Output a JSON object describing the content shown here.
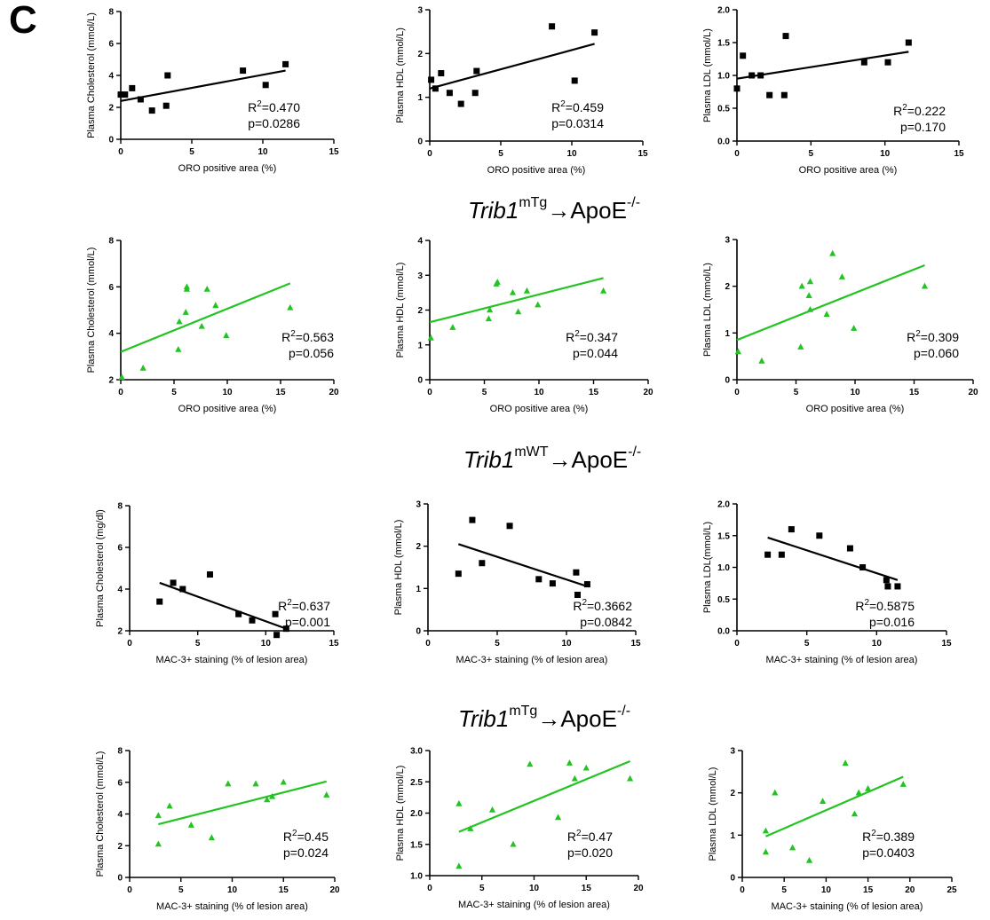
{
  "panel_label": "C",
  "sections": [
    {
      "gene": "Trib1",
      "sup": "mTg",
      "arrow": "→",
      "host": "ApoE",
      "host_sup": "-/-"
    },
    {
      "gene": "Trib1",
      "sup": "mWT",
      "arrow": "→",
      "host": "ApoE",
      "host_sup": "-/-"
    },
    {
      "gene": "Trib1",
      "sup": "mTg",
      "arrow": "→",
      "host": "ApoE",
      "host_sup": "-/-"
    }
  ],
  "colors": {
    "black_series": "#000000",
    "green_series": "#22c322"
  },
  "chart_data": [
    {
      "type": "scatter",
      "marker": "square",
      "color": "#000000",
      "xlabel": "ORO positive area (%)",
      "ylabel": "Plasma Cholesterol (mmol/L)",
      "xlim": [
        0,
        15
      ],
      "ylim": [
        0,
        8
      ],
      "xticks": [
        "0",
        "5",
        "10",
        "15"
      ],
      "yticks": [
        "0",
        "2",
        "4",
        "6",
        "8"
      ],
      "points": [
        [
          0,
          2.8
        ],
        [
          0.3,
          2.8
        ],
        [
          0.8,
          3.2
        ],
        [
          1.4,
          2.5
        ],
        [
          2.2,
          1.8
        ],
        [
          3.2,
          2.1
        ],
        [
          3.3,
          4.0
        ],
        [
          8.6,
          4.3
        ],
        [
          10.2,
          3.4
        ],
        [
          11.6,
          4.7
        ]
      ],
      "fit": [
        [
          0,
          2.4
        ],
        [
          11.6,
          4.3
        ]
      ],
      "r2_label": "R",
      "r2_sup": "2",
      "r2_value": "=0.470",
      "p_label": "p=0.0286"
    },
    {
      "type": "scatter",
      "marker": "square",
      "color": "#000000",
      "xlabel": "ORO positive area (%)",
      "ylabel": "Plasma HDL (mmol/L)",
      "xlim": [
        0,
        15
      ],
      "ylim": [
        0,
        3
      ],
      "xticks": [
        "0",
        "5",
        "10",
        "15"
      ],
      "yticks": [
        "0",
        "1",
        "2",
        "3"
      ],
      "points": [
        [
          0.1,
          1.4
        ],
        [
          0.4,
          1.2
        ],
        [
          0.8,
          1.55
        ],
        [
          1.4,
          1.1
        ],
        [
          2.2,
          0.85
        ],
        [
          3.2,
          1.1
        ],
        [
          3.3,
          1.6
        ],
        [
          8.6,
          2.62
        ],
        [
          10.2,
          1.38
        ],
        [
          11.6,
          2.48
        ]
      ],
      "fit": [
        [
          0,
          1.2
        ],
        [
          11.6,
          2.22
        ]
      ],
      "r2_label": "R",
      "r2_sup": "2",
      "r2_value": "=0.459",
      "p_label": "p=0.0314"
    },
    {
      "type": "scatter",
      "marker": "square",
      "color": "#000000",
      "xlabel": "ORO positive area (%)",
      "ylabel": "Plasma LDL (mmol/L)",
      "xlim": [
        0,
        15
      ],
      "ylim": [
        0,
        2
      ],
      "xticks": [
        "0",
        "5",
        "10",
        "15"
      ],
      "yticks": [
        "0.0",
        "0.5",
        "1.0",
        "1.5",
        "2.0"
      ],
      "points": [
        [
          0,
          0.8
        ],
        [
          0.4,
          1.3
        ],
        [
          1.0,
          1.0
        ],
        [
          1.6,
          1.0
        ],
        [
          2.2,
          0.7
        ],
        [
          3.2,
          0.7
        ],
        [
          3.3,
          1.6
        ],
        [
          8.6,
          1.2
        ],
        [
          10.2,
          1.2
        ],
        [
          11.6,
          1.5
        ]
      ],
      "fit": [
        [
          0,
          0.95
        ],
        [
          11.6,
          1.36
        ]
      ],
      "r2_label": "R",
      "r2_sup": "2",
      "r2_value": "=0.222",
      "p_label": "p=0.170"
    },
    {
      "type": "scatter",
      "marker": "triangle",
      "color": "#22c322",
      "xlabel": "ORO positive area (%)",
      "ylabel": "Plasma Cholesterol (mmol/L)",
      "xlim": [
        0,
        20
      ],
      "ylim": [
        2,
        8
      ],
      "xticks": [
        "0",
        "5",
        "10",
        "15",
        "20"
      ],
      "yticks": [
        "2",
        "4",
        "6",
        "8"
      ],
      "points": [
        [
          0.1,
          2.1
        ],
        [
          2.1,
          2.5
        ],
        [
          5.4,
          3.3
        ],
        [
          5.5,
          4.5
        ],
        [
          6.1,
          4.9
        ],
        [
          6.2,
          5.9
        ],
        [
          6.2,
          6.0
        ],
        [
          7.6,
          4.3
        ],
        [
          8.1,
          5.9
        ],
        [
          8.9,
          5.2
        ],
        [
          9.9,
          3.9
        ],
        [
          15.9,
          5.1
        ]
      ],
      "fit": [
        [
          0,
          3.2
        ],
        [
          15.9,
          6.15
        ]
      ],
      "r2_label": "R",
      "r2_sup": "2",
      "r2_value": "=0.563",
      "p_label": "p=0.056"
    },
    {
      "type": "scatter",
      "marker": "triangle",
      "color": "#22c322",
      "xlabel": "ORO positive area (%)",
      "ylabel": "Plasma HDL (mmol/L)",
      "xlim": [
        0,
        20
      ],
      "ylim": [
        0,
        4
      ],
      "xticks": [
        "0",
        "5",
        "10",
        "15",
        "20"
      ],
      "yticks": [
        "0",
        "1",
        "2",
        "3",
        "4"
      ],
      "points": [
        [
          0.1,
          1.2
        ],
        [
          2.1,
          1.5
        ],
        [
          5.4,
          1.75
        ],
        [
          5.5,
          2.0
        ],
        [
          6.1,
          2.75
        ],
        [
          6.2,
          2.8
        ],
        [
          7.6,
          2.5
        ],
        [
          8.1,
          1.95
        ],
        [
          8.9,
          2.55
        ],
        [
          9.9,
          2.15
        ],
        [
          15.9,
          2.55
        ]
      ],
      "fit": [
        [
          0,
          1.65
        ],
        [
          15.9,
          2.92
        ]
      ],
      "r2_label": "R",
      "r2_sup": "2",
      "r2_value": "=0.347",
      "p_label": "p=0.044"
    },
    {
      "type": "scatter",
      "marker": "triangle",
      "color": "#22c322",
      "xlabel": "ORO positive area (%)",
      "ylabel": "Plasma LDL (mmol/L)",
      "xlim": [
        0,
        20
      ],
      "ylim": [
        0,
        3
      ],
      "xticks": [
        "0",
        "5",
        "10",
        "15",
        "20"
      ],
      "yticks": [
        "0",
        "1",
        "2",
        "3"
      ],
      "points": [
        [
          0.1,
          0.6
        ],
        [
          2.1,
          0.4
        ],
        [
          5.4,
          0.7
        ],
        [
          5.5,
          2.0
        ],
        [
          6.1,
          1.8
        ],
        [
          6.2,
          2.1
        ],
        [
          6.2,
          1.5
        ],
        [
          7.6,
          1.4
        ],
        [
          8.1,
          2.7
        ],
        [
          8.9,
          2.2
        ],
        [
          9.9,
          1.1
        ],
        [
          15.9,
          2.0
        ]
      ],
      "fit": [
        [
          0,
          0.85
        ],
        [
          15.9,
          2.45
        ]
      ],
      "r2_label": "R",
      "r2_sup": "2",
      "r2_value": "=0.309",
      "p_label": "p=0.060"
    },
    {
      "type": "scatter",
      "marker": "square",
      "color": "#000000",
      "xlabel": "MAC-3+ staining (% of lesion area)",
      "ylabel": "Plasma Cholesterol (mg/dl)",
      "xlim": [
        0,
        15
      ],
      "ylim": [
        2,
        8
      ],
      "xticks": [
        "0",
        "5",
        "10",
        "15"
      ],
      "yticks": [
        "2",
        "4",
        "6",
        "8"
      ],
      "points": [
        [
          2.2,
          3.4
        ],
        [
          3.2,
          4.3
        ],
        [
          3.9,
          4.0
        ],
        [
          5.9,
          4.7
        ],
        [
          8.0,
          2.8
        ],
        [
          9.0,
          2.5
        ],
        [
          10.7,
          2.8
        ],
        [
          10.8,
          1.8
        ],
        [
          11.5,
          2.1
        ]
      ],
      "fit": [
        [
          2.2,
          4.3
        ],
        [
          11.5,
          2.1
        ]
      ],
      "r2_label": "R",
      "r2_sup": "2",
      "r2_value": "=0.637",
      "p_label": "p=0.001"
    },
    {
      "type": "scatter",
      "marker": "square",
      "color": "#000000",
      "xlabel": "MAC-3+ staining (% of lesion area)",
      "ylabel": "Plasma HDL (mmol/L)",
      "xlim": [
        0,
        15
      ],
      "ylim": [
        0,
        3
      ],
      "xticks": [
        "0",
        "5",
        "10",
        "15"
      ],
      "yticks": [
        "0",
        "1",
        "2",
        "3"
      ],
      "points": [
        [
          2.2,
          1.35
        ],
        [
          3.2,
          2.62
        ],
        [
          3.9,
          1.6
        ],
        [
          5.9,
          2.48
        ],
        [
          8.0,
          1.22
        ],
        [
          9.0,
          1.12
        ],
        [
          10.7,
          1.38
        ],
        [
          10.8,
          0.85
        ],
        [
          11.5,
          1.1
        ]
      ],
      "fit": [
        [
          2.2,
          2.05
        ],
        [
          11.5,
          1.05
        ]
      ],
      "r2_label": "R",
      "r2_sup": "2",
      "r2_value": "=0.3662",
      "p_label": "p=0.0842"
    },
    {
      "type": "scatter",
      "marker": "square",
      "color": "#000000",
      "xlabel": "MAC-3+ staining (% of lesion area)",
      "ylabel": "Plasma LDL(mmol/L)",
      "xlim": [
        0,
        15
      ],
      "ylim": [
        0,
        2
      ],
      "xticks": [
        "0",
        "5",
        "10",
        "15"
      ],
      "yticks": [
        "0.0",
        "0.5",
        "1.0",
        "1.5",
        "2.0"
      ],
      "points": [
        [
          2.2,
          1.2
        ],
        [
          3.2,
          1.2
        ],
        [
          3.9,
          1.6
        ],
        [
          5.9,
          1.5
        ],
        [
          8.1,
          1.3
        ],
        [
          9.0,
          1.0
        ],
        [
          10.7,
          0.8
        ],
        [
          10.8,
          0.7
        ],
        [
          11.5,
          0.7
        ]
      ],
      "fit": [
        [
          2.2,
          1.47
        ],
        [
          11.5,
          0.8
        ]
      ],
      "r2_label": "R",
      "r2_sup": "2",
      "r2_value": "=0.5875",
      "p_label": "p=0.016"
    },
    {
      "type": "scatter",
      "marker": "triangle",
      "color": "#22c322",
      "xlabel": "MAC-3+ staining (% of lesion area)",
      "ylabel": "Plasma Cholesterol (mmol/L)",
      "xlim": [
        0,
        20
      ],
      "ylim": [
        0,
        8
      ],
      "xticks": [
        "0",
        "5",
        "10",
        "15",
        "20"
      ],
      "yticks": [
        "0",
        "2",
        "4",
        "6",
        "8"
      ],
      "points": [
        [
          2.8,
          2.1
        ],
        [
          2.8,
          3.9
        ],
        [
          3.9,
          4.5
        ],
        [
          6.0,
          3.3
        ],
        [
          8.0,
          2.5
        ],
        [
          9.6,
          5.9
        ],
        [
          12.3,
          5.9
        ],
        [
          13.4,
          4.9
        ],
        [
          13.9,
          5.1
        ],
        [
          15.0,
          6.0
        ],
        [
          19.2,
          5.2
        ]
      ],
      "fit": [
        [
          2.8,
          3.35
        ],
        [
          19.2,
          6.05
        ]
      ],
      "r2_label": "R",
      "r2_sup": "2",
      "r2_value": "=0.45",
      "p_label": "p=0.024"
    },
    {
      "type": "scatter",
      "marker": "triangle",
      "color": "#22c322",
      "xlabel": "MAC-3+ staining (% of lesion area)",
      "ylabel": "Plasma HDL (mmol/L)",
      "xlim": [
        0,
        20
      ],
      "ylim": [
        1,
        3
      ],
      "xticks": [
        "0",
        "5",
        "10",
        "15",
        "20"
      ],
      "yticks": [
        "1.0",
        "1.5",
        "2.0",
        "2.5",
        "3.0"
      ],
      "points": [
        [
          2.8,
          1.15
        ],
        [
          2.8,
          2.15
        ],
        [
          3.9,
          1.75
        ],
        [
          6.0,
          2.05
        ],
        [
          8.0,
          1.5
        ],
        [
          9.6,
          2.78
        ],
        [
          12.3,
          1.93
        ],
        [
          13.4,
          2.8
        ],
        [
          13.9,
          2.55
        ],
        [
          15.0,
          2.72
        ],
        [
          19.2,
          2.55
        ]
      ],
      "fit": [
        [
          2.8,
          1.7
        ],
        [
          19.2,
          2.83
        ]
      ],
      "r2_label": "R",
      "r2_sup": "2",
      "r2_value": "=0.47",
      "p_label": "p=0.020"
    },
    {
      "type": "scatter",
      "marker": "triangle",
      "color": "#22c322",
      "xlabel": "MAC-3+ staining (% of lesion area)",
      "ylabel": "Plasma LDL (mmol/L)",
      "xlim": [
        0,
        25
      ],
      "ylim": [
        0,
        3
      ],
      "xticks": [
        "0",
        "5",
        "10",
        "15",
        "20",
        "25"
      ],
      "yticks": [
        "0",
        "1",
        "2",
        "3"
      ],
      "points": [
        [
          2.8,
          0.6
        ],
        [
          2.8,
          1.1
        ],
        [
          3.9,
          2.0
        ],
        [
          6.0,
          0.7
        ],
        [
          8.0,
          0.4
        ],
        [
          9.6,
          1.8
        ],
        [
          12.3,
          2.7
        ],
        [
          13.4,
          1.5
        ],
        [
          13.9,
          2.0
        ],
        [
          15.0,
          2.1
        ],
        [
          19.2,
          2.2
        ]
      ],
      "fit": [
        [
          2.8,
          0.97
        ],
        [
          19.2,
          2.38
        ]
      ],
      "r2_label": "R",
      "r2_sup": "2",
      "r2_value": "=0.389",
      "p_label": "p=0.0403"
    }
  ]
}
